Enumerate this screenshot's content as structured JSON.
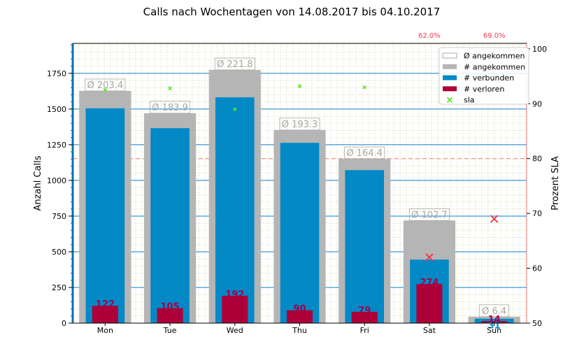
{
  "chart_data": {
    "type": "bar",
    "title": "Calls nach Wochentagen von 14.08.2017 bis 04.10.2017",
    "ylabel": "Anzahl Calls",
    "y2label": "Prozent SLA",
    "ylim": [
      0,
      1960
    ],
    "y2lim": [
      50,
      101
    ],
    "yticks": [
      0,
      250,
      500,
      750,
      1000,
      1250,
      1500,
      1750
    ],
    "y2ticks": [
      50,
      60,
      70,
      80,
      90,
      100
    ],
    "sla_target": 80,
    "categories": [
      "Mon",
      "Tue",
      "Wed",
      "Thu",
      "Fri",
      "Sat",
      "Sun"
    ],
    "series": [
      {
        "name": "Ø angekommen",
        "labels": [
          "Ø 203.4",
          "Ø 183.9",
          "Ø 221.8",
          "Ø 193.3",
          "Ø 164.4",
          "Ø 102.7",
          "Ø 6.4"
        ]
      },
      {
        "name": "# angekommen",
        "values": [
          1627,
          1471,
          1774,
          1353,
          1151,
          719,
          45
        ]
      },
      {
        "name": "# verbunden",
        "values": [
          1505,
          1366,
          1582,
          1263,
          1072,
          445,
          31
        ]
      },
      {
        "name": "# verloren",
        "values": [
          122,
          105,
          192,
          90,
          79,
          274,
          14
        ]
      },
      {
        "name": "sla",
        "values": [
          92.5,
          92.8,
          89.0,
          93.2,
          93.0,
          62.0,
          69.0
        ]
      }
    ],
    "sla_below_labels": [
      {
        "category": "Sat",
        "label": "62.0%"
      },
      {
        "category": "Sun",
        "label": "69.0%"
      }
    ],
    "colors": {
      "angekommen": "#b5b5b5",
      "verbunden": "#0289c6",
      "verloren": "#ae0038",
      "sla_ok": "#5ce22c",
      "sla_bad": "#f03c50",
      "avg_text": "#a8a8a8",
      "verloren_text": "#a3004a",
      "grid": "#0a80c8",
      "minor_grid": "#e4e6c8",
      "right_axis": "#f07878",
      "left_spine": "#0b6fb0"
    },
    "legend_position": "top-right"
  }
}
